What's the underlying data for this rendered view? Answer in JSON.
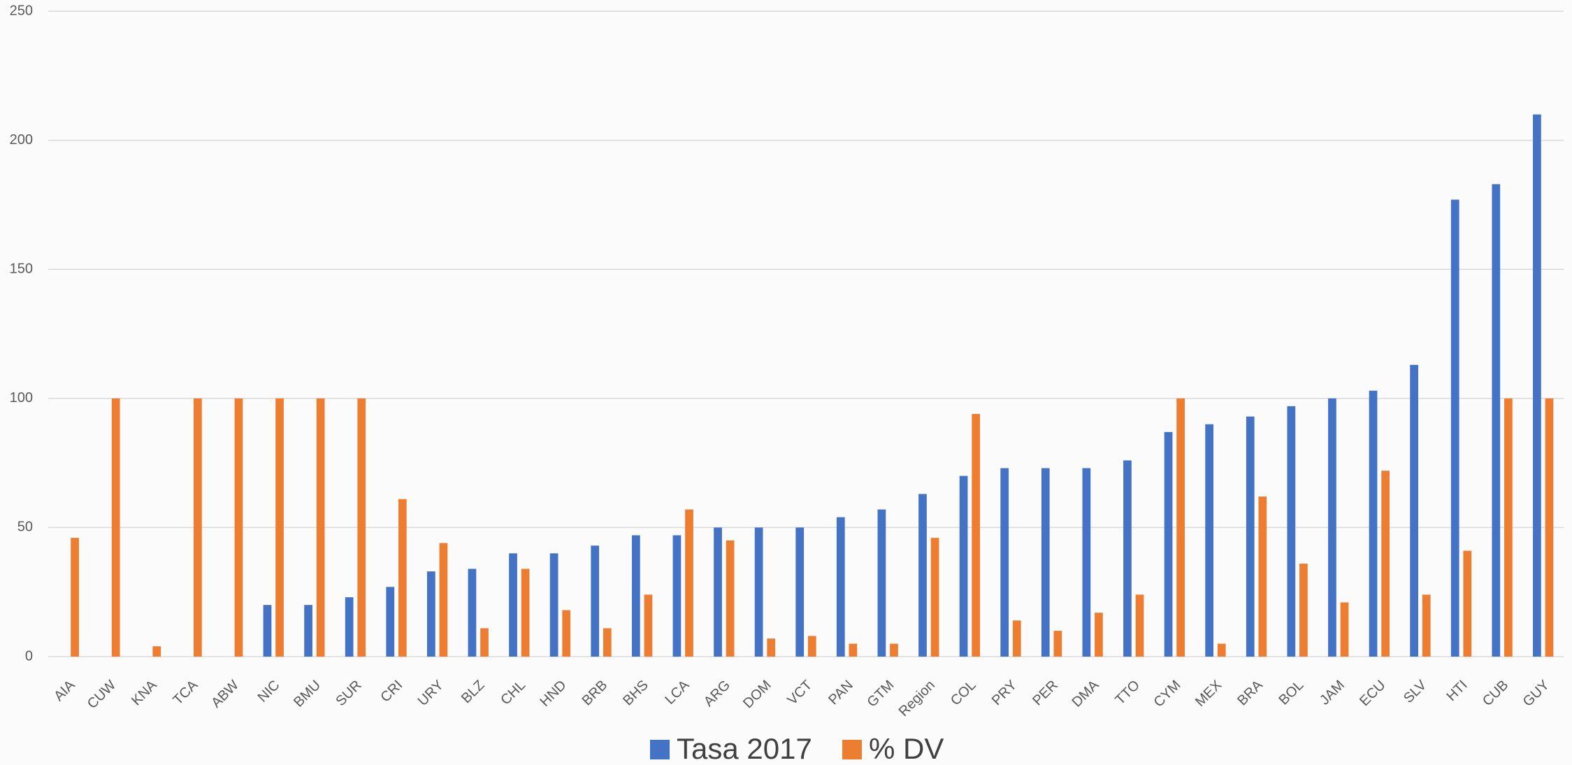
{
  "chart_data": {
    "type": "bar",
    "categories": [
      "AIA",
      "CUW",
      "KNA",
      "TCA",
      "ABW",
      "NIC",
      "BMU",
      "SUR",
      "CRI",
      "URY",
      "BLZ",
      "CHL",
      "HND",
      "BRB",
      "BHS",
      "LCA",
      "ARG",
      "DOM",
      "VCT",
      "PAN",
      "GTM",
      "Region",
      "COL",
      "PRY",
      "PER",
      "DMA",
      "TTO",
      "CYM",
      "MEX",
      "BRA",
      "BOL",
      "JAM",
      "ECU",
      "SLV",
      "HTI",
      "CUB",
      "GUY"
    ],
    "series": [
      {
        "name": "Tasa 2017",
        "color": "#4472c4",
        "values": [
          0,
          0,
          0,
          0,
          0,
          20,
          20,
          23,
          27,
          33,
          34,
          40,
          40,
          43,
          47,
          47,
          50,
          50,
          50,
          54,
          57,
          63,
          70,
          73,
          73,
          73,
          76,
          87,
          90,
          93,
          97,
          100,
          103,
          113,
          177,
          183,
          210
        ]
      },
      {
        "name": "% DV",
        "color": "#ed7d31",
        "values": [
          46,
          100,
          4,
          100,
          100,
          100,
          100,
          100,
          61,
          44,
          11,
          34,
          18,
          11,
          24,
          57,
          45,
          7,
          8,
          5,
          5,
          46,
          94,
          14,
          10,
          17,
          24,
          100,
          5,
          62,
          36,
          21,
          72,
          24,
          41,
          100,
          100
        ]
      }
    ],
    "ylim": [
      0,
      250
    ],
    "yticks": [
      0,
      50,
      100,
      150,
      200,
      250
    ],
    "grid": true,
    "legend": "bottom"
  }
}
